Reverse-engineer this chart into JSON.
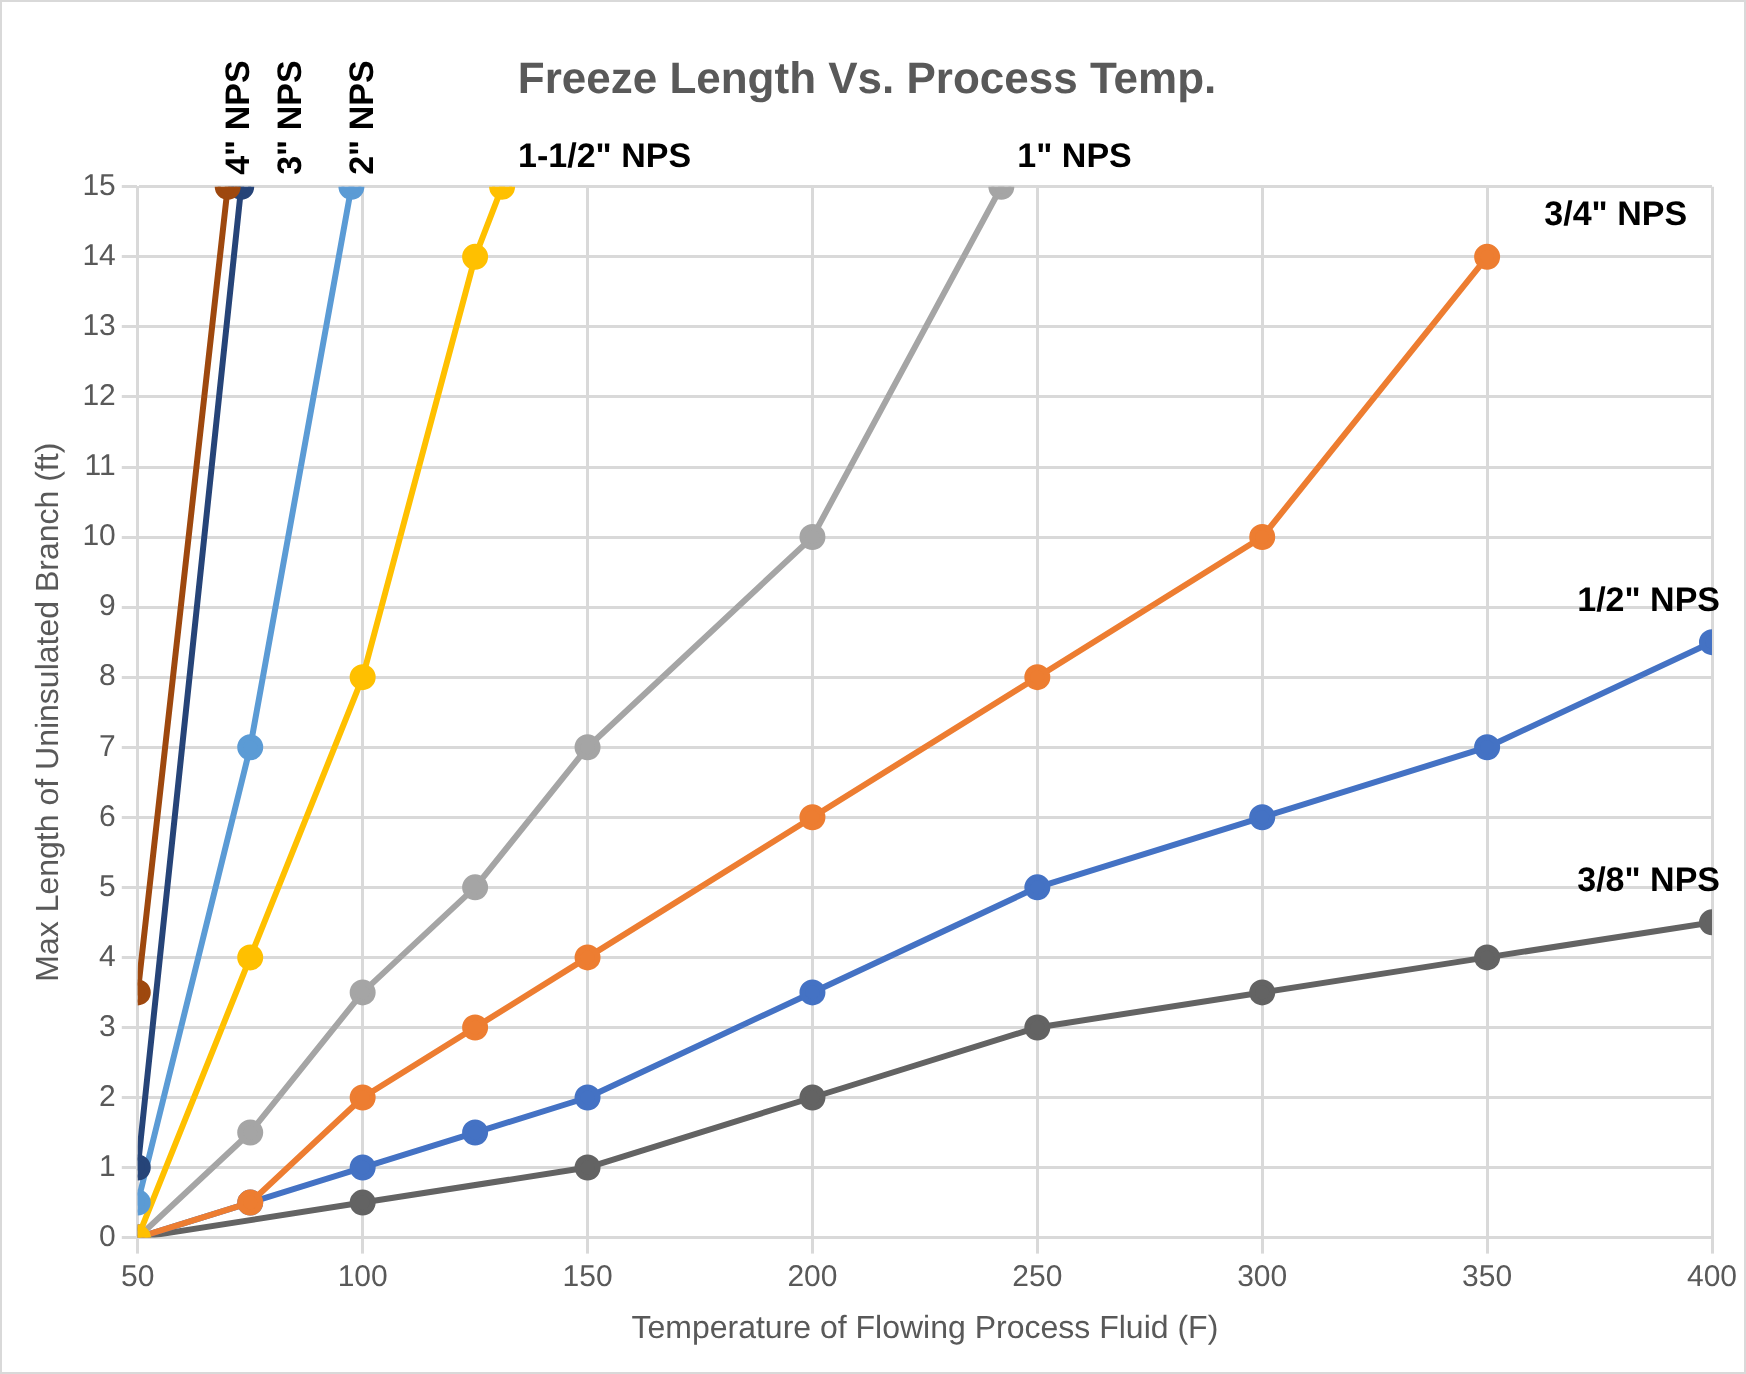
{
  "chart_data": {
    "type": "line",
    "title": "Freeze Length Vs. Process Temp.",
    "xlabel": "Temperature of Flowing Process Fluid (F)",
    "ylabel": "Max Length of Uninsulated Branch (ft)",
    "xlim": [
      50,
      400
    ],
    "xticks": [
      50,
      100,
      150,
      200,
      250,
      300,
      350,
      400
    ],
    "ylim": [
      0,
      15
    ],
    "yticks": [
      0,
      1,
      2,
      3,
      4,
      5,
      6,
      7,
      8,
      9,
      10,
      11,
      12,
      13,
      14,
      15
    ],
    "grid": true,
    "marker": "circle",
    "line_style": "solid",
    "series": [
      {
        "name": "4\" NPS",
        "color": "#9e480e",
        "x": [
          50,
          70
        ],
        "values": [
          3.5,
          15
        ]
      },
      {
        "name": "3\" NPS",
        "color": "#264478",
        "x": [
          50,
          73
        ],
        "values": [
          1,
          15
        ]
      },
      {
        "name": "2\" NPS",
        "color": "#5b9bd5",
        "x": [
          50,
          75,
          97.5
        ],
        "values": [
          0.5,
          7,
          15
        ]
      },
      {
        "name": "1-1/2\" NPS",
        "color": "#ffc000",
        "x": [
          50,
          75,
          100,
          125,
          131
        ],
        "values": [
          0,
          4,
          8,
          14,
          15
        ]
      },
      {
        "name": "1\" NPS",
        "color": "#a5a5a5",
        "x": [
          50,
          75,
          100,
          125,
          150,
          200,
          242
        ],
        "values": [
          0,
          1.5,
          3.5,
          5,
          7,
          10,
          15
        ]
      },
      {
        "name": "3/4\" NPS",
        "color": "#ed7d31",
        "x": [
          50,
          75,
          100,
          125,
          150,
          200,
          250,
          300,
          350
        ],
        "values": [
          0,
          0.5,
          2,
          3,
          4,
          6,
          8,
          10,
          14
        ]
      },
      {
        "name": "1/2\" NPS",
        "color": "#4472c4",
        "x": [
          50,
          75,
          100,
          125,
          150,
          200,
          250,
          300,
          350,
          400
        ],
        "values": [
          0,
          0.5,
          1,
          1.5,
          2,
          3.5,
          5,
          6,
          7,
          8.5
        ]
      },
      {
        "name": "3/8\" NPS",
        "color": "#636363",
        "x": [
          50,
          100,
          150,
          200,
          250,
          300,
          350,
          400
        ],
        "values": [
          0,
          0.5,
          1,
          2,
          3,
          3.5,
          4,
          4.5
        ]
      }
    ]
  }
}
